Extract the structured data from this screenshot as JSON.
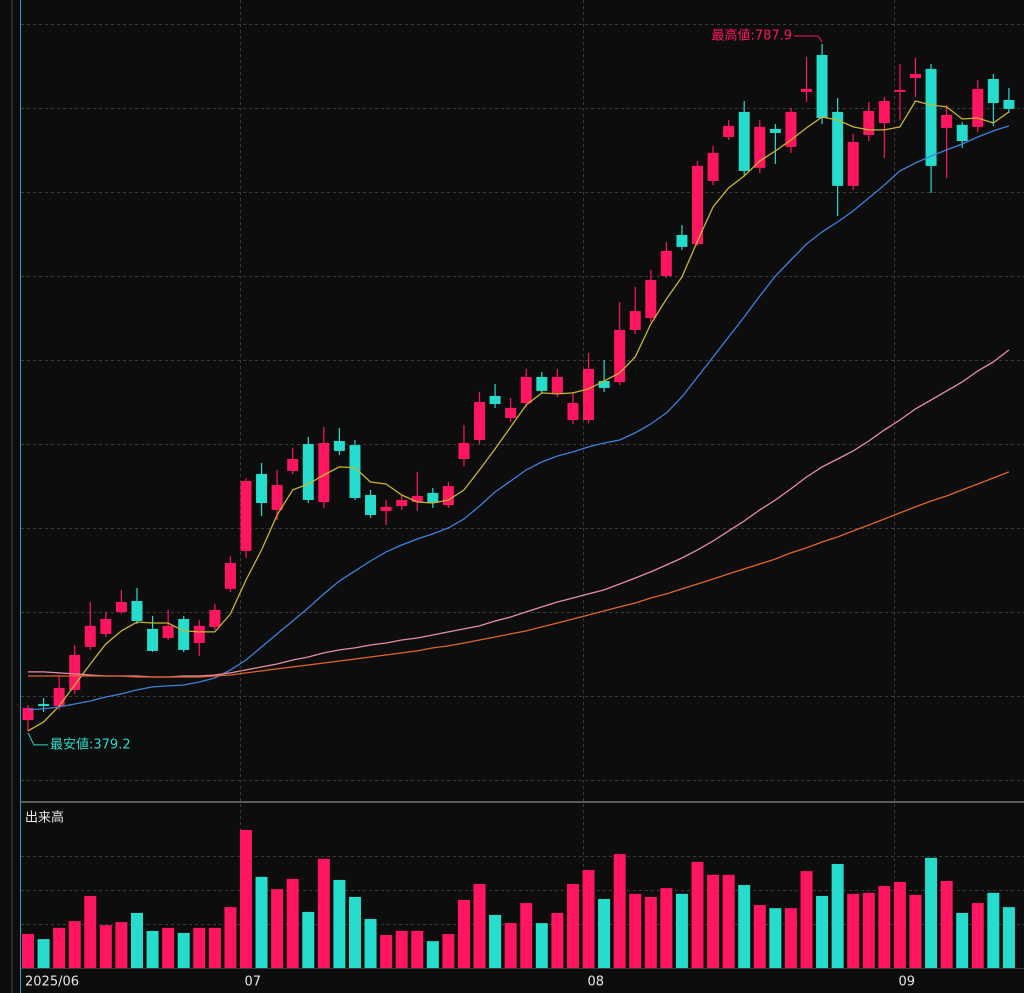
{
  "chart_data": {
    "type": "candlestick",
    "categories": [
      "2025/06",
      null,
      null,
      null,
      null,
      null,
      null,
      null,
      null,
      null,
      null,
      null,
      null,
      null,
      "07",
      null,
      null,
      null,
      null,
      null,
      null,
      null,
      null,
      null,
      null,
      null,
      null,
      null,
      null,
      null,
      null,
      null,
      null,
      null,
      null,
      null,
      "08",
      null,
      null,
      null,
      null,
      null,
      null,
      null,
      null,
      null,
      null,
      null,
      null,
      null,
      null,
      null,
      null,
      null,
      null,
      null,
      "09",
      null,
      null,
      null,
      null,
      null,
      null,
      null
    ],
    "open": [
      385.7,
      395.2,
      394.0,
      403.6,
      429.2,
      436.9,
      450.0,
      456.5,
      439.9,
      434.5,
      445.8,
      431.5,
      441.1,
      463.7,
      486.3,
      532.1,
      510.7,
      533.9,
      549.9,
      515.4,
      551.7,
      549.3,
      519.6,
      510.1,
      513.0,
      515.4,
      520.8,
      513.6,
      541.0,
      552.3,
      578.5,
      565.4,
      574.3,
      589.8,
      580.3,
      564.2,
      564.2,
      587.4,
      586.8,
      617.8,
      624.9,
      649.9,
      674.3,
      668.9,
      706.4,
      732.6,
      747.5,
      714.2,
      737.4,
      726.7,
      759.4,
      781.4,
      747.5,
      703.5,
      733.8,
      740.9,
      759.4,
      767.7,
      773.1,
      738.0,
      739.8,
      738.6,
      767.1,
      754.6
    ],
    "high": [
      394.6,
      398.8,
      411.9,
      430.3,
      455.9,
      450.0,
      463.1,
      464.3,
      447.6,
      451.2,
      447.6,
      445.2,
      454.7,
      483.3,
      529.7,
      538.6,
      534.5,
      547.6,
      554.1,
      560.1,
      559.5,
      552.3,
      522.6,
      516.6,
      519.6,
      533.3,
      523.8,
      527.3,
      561.2,
      580.9,
      585.6,
      577.3,
      594.6,
      592.8,
      594.6,
      580.9,
      604.1,
      599.9,
      634.4,
      643.4,
      653.5,
      670.1,
      680.2,
      718.3,
      727.3,
      742.7,
      754.0,
      742.7,
      740.3,
      749.9,
      780.2,
      787.9,
      755.8,
      734.4,
      753.4,
      756.4,
      776.0,
      779.6,
      776.0,
      751.6,
      741.5,
      766.5,
      770.1,
      761.8
    ],
    "low": [
      379.2,
      390.5,
      391.7,
      401.2,
      427.4,
      435.1,
      448.8,
      442.8,
      426.2,
      433.3,
      426.2,
      423.8,
      439.3,
      461.9,
      482.1,
      507.1,
      504.7,
      532.1,
      514.8,
      511.9,
      543.4,
      516.6,
      505.9,
      501.7,
      510.7,
      510.1,
      511.9,
      511.9,
      536.8,
      549.9,
      571.4,
      563.0,
      572.0,
      579.7,
      577.9,
      561.8,
      562.4,
      580.9,
      585.0,
      615.4,
      622.5,
      648.7,
      665.4,
      667.8,
      704.0,
      730.8,
      709.4,
      711.2,
      716.5,
      723.1,
      753.4,
      740.3,
      685.6,
      701.1,
      730.2,
      720.1,
      742.7,
      756.4,
      699.3,
      708.2,
      726.1,
      735.6,
      739.2,
      746.9
    ],
    "close": [
      392.9,
      394.0,
      404.8,
      424.4,
      441.7,
      445.8,
      455.9,
      444.6,
      426.8,
      441.7,
      427.4,
      441.7,
      451.2,
      479.1,
      527.9,
      514.8,
      525.5,
      541.0,
      516.6,
      550.5,
      545.8,
      517.8,
      507.7,
      512.5,
      516.6,
      519.0,
      514.8,
      524.9,
      550.5,
      574.9,
      573.7,
      571.4,
      589.8,
      581.5,
      589.8,
      574.3,
      594.6,
      583.3,
      617.8,
      629.0,
      647.5,
      664.8,
      667.2,
      715.4,
      723.1,
      739.2,
      712.4,
      738.6,
      735.0,
      747.5,
      761.2,
      743.9,
      703.5,
      729.6,
      748.1,
      754.0,
      760.6,
      770.1,
      715.4,
      745.7,
      730.2,
      761.2,
      752.8,
      749.3
    ],
    "up_color": "#ff1560",
    "down_color": "#26dccd",
    "ylim": [
      338.1,
      814.1
    ],
    "yticks": [
      350,
      400,
      450,
      500,
      550,
      600,
      650,
      700,
      750,
      800
    ],
    "grid": true,
    "moving_averages": [
      {
        "color": "#c9b52c",
        "values": [
          379.2,
          384.5,
          394.0,
          406.5,
          419.0,
          430.9,
          438.7,
          444.0,
          443.4,
          443.4,
          438.7,
          438.1,
          438.1,
          448.8,
          469.0,
          486.9,
          507.7,
          522.6,
          526.1,
          531.5,
          536.3,
          535.7,
          527.3,
          526.1,
          519.6,
          515.4,
          514.8,
          516.6,
          522.6,
          534.5,
          547.0,
          560.1,
          573.1,
          580.3,
          579.7,
          580.3,
          582.7,
          587.4,
          592.2,
          601.7,
          621.3,
          636.2,
          649.3,
          670.7,
          691.0,
          702.3,
          709.4,
          718.3,
          724.3,
          730.8,
          738.0,
          744.5,
          742.7,
          738.6,
          736.8,
          736.8,
          738.6,
          754.0,
          751.6,
          750.5,
          743.3,
          743.9,
          740.9,
          747.5
        ]
      },
      {
        "color": "#3c82dc",
        "values": [
          391.7,
          392.3,
          393.5,
          395.2,
          397.0,
          399.4,
          401.2,
          403.6,
          405.4,
          406.0,
          406.5,
          408.3,
          410.7,
          415.5,
          421.4,
          429.2,
          436.9,
          444.6,
          452.4,
          460.7,
          468.4,
          474.4,
          480.3,
          485.7,
          489.8,
          493.4,
          496.4,
          500.0,
          505.3,
          513.0,
          521.4,
          527.9,
          534.5,
          539.2,
          542.8,
          545.2,
          548.2,
          550.5,
          552.3,
          556.5,
          561.8,
          568.4,
          577.9,
          589.8,
          601.7,
          613.6,
          625.5,
          638.0,
          649.9,
          659.4,
          668.9,
          676.1,
          682.0,
          688.6,
          696.3,
          704.0,
          712.4,
          717.1,
          721.3,
          724.9,
          728.4,
          732.6,
          736.2,
          739.2
        ]
      },
      {
        "color": "#e88caa",
        "values": [
          414.3,
          414.3,
          413.7,
          413.1,
          412.5,
          411.9,
          411.9,
          411.9,
          411.3,
          411.3,
          411.9,
          411.9,
          412.5,
          413.7,
          415.5,
          417.3,
          419.0,
          421.4,
          423.2,
          425.6,
          427.4,
          428.6,
          430.3,
          431.5,
          433.3,
          434.5,
          436.3,
          438.1,
          439.9,
          441.7,
          444.6,
          447.0,
          450.0,
          453.0,
          455.9,
          458.3,
          460.7,
          463.1,
          466.6,
          470.2,
          473.8,
          477.9,
          482.1,
          486.9,
          492.2,
          498.2,
          504.1,
          510.7,
          516.6,
          523.2,
          530.3,
          536.3,
          541.0,
          545.8,
          551.7,
          558.3,
          564.2,
          570.8,
          576.1,
          581.5,
          586.8,
          593.4,
          598.7,
          605.9
        ]
      },
      {
        "color": "#e2632b",
        "values": [
          411.9,
          411.9,
          411.9,
          411.9,
          411.9,
          411.9,
          411.9,
          411.3,
          411.3,
          411.3,
          411.3,
          411.3,
          411.9,
          412.5,
          413.7,
          414.9,
          416.1,
          417.3,
          418.4,
          419.6,
          420.8,
          422.0,
          423.2,
          424.4,
          425.6,
          426.8,
          428.6,
          429.8,
          431.5,
          433.3,
          435.1,
          436.9,
          438.7,
          441.1,
          443.4,
          445.8,
          448.2,
          450.6,
          453.0,
          455.3,
          458.3,
          460.7,
          463.7,
          466.6,
          469.6,
          472.6,
          475.6,
          478.5,
          481.5,
          485.1,
          488.1,
          491.6,
          494.6,
          498.2,
          501.7,
          505.3,
          508.9,
          512.5,
          516.0,
          519.0,
          522.6,
          526.1,
          529.7,
          533.3
        ]
      }
    ],
    "high_label": "最高値:787.9",
    "low_label": "最安値:379.2",
    "volume_title": "出来高",
    "volume": [
      1.0,
      0.85,
      1.18,
      1.38,
      2.12,
      1.26,
      1.35,
      1.62,
      1.09,
      1.18,
      1.03,
      1.18,
      1.18,
      1.79,
      4.06,
      2.68,
      2.32,
      2.62,
      1.65,
      3.21,
      2.59,
      2.09,
      1.44,
      0.97,
      1.09,
      1.09,
      0.79,
      1.0,
      2.0,
      2.47,
      1.56,
      1.32,
      1.91,
      1.32,
      1.62,
      2.47,
      2.88,
      2.03,
      3.35,
      2.18,
      2.09,
      2.35,
      2.18,
      3.12,
      2.74,
      2.74,
      2.44,
      1.85,
      1.76,
      1.76,
      2.85,
      2.12,
      3.06,
      2.18,
      2.21,
      2.41,
      2.53,
      2.15,
      3.24,
      2.56,
      1.62,
      1.91,
      2.21,
      1.79
    ],
    "volume_ylim": [
      0,
      4.8
    ],
    "volume_yticks": [
      1.3,
      2.3,
      3.3
    ]
  }
}
